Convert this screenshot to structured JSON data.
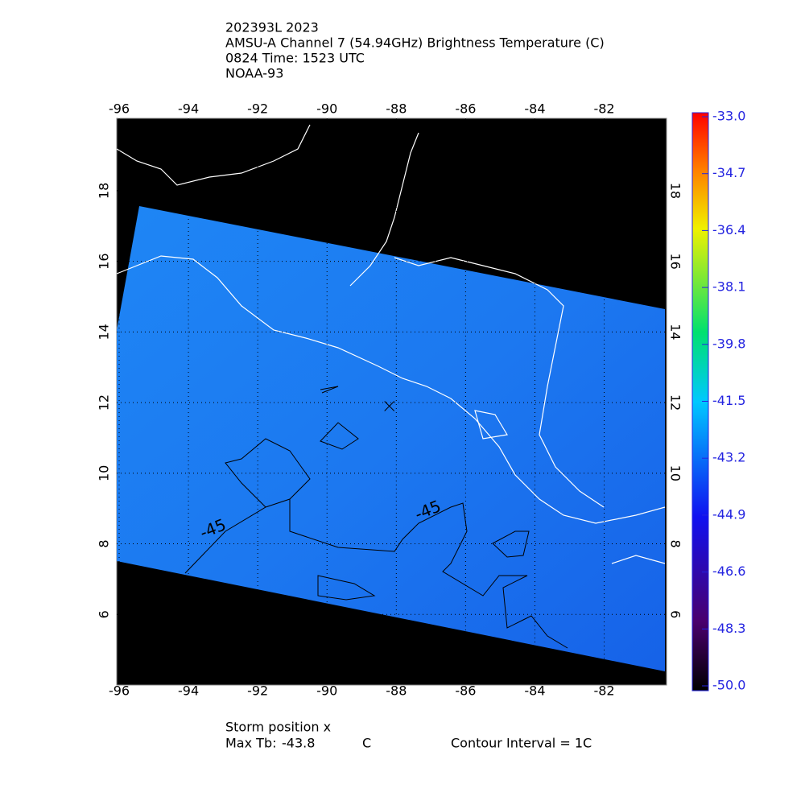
{
  "title_lines": [
    "202393L 2023",
    "AMSU-A Channel 7 (54.94GHz) Brightness Temperature (C)",
    "0824 Time: 1523 UTC",
    "NOAA-93"
  ],
  "map": {
    "xlim": [
      -96.07,
      -80.2
    ],
    "ylim": [
      4.0,
      20.05
    ],
    "xticks": [
      -96,
      -94,
      -92,
      -90,
      -88,
      -86,
      -84,
      -82
    ],
    "yticks": [
      6,
      8,
      10,
      12,
      14,
      16,
      18
    ],
    "contour_labels": [
      "-45",
      "-45"
    ],
    "storm": {
      "lon": -88.2,
      "lat": 11.9
    }
  },
  "colorbar": {
    "lim": [
      -50,
      -33
    ],
    "ticks": [
      {
        "value": -33,
        "label": "-33.0"
      },
      {
        "value": -34.7,
        "label": "-34.7"
      },
      {
        "value": -36.4,
        "label": "-36.4"
      },
      {
        "value": -38.1,
        "label": "-38.1"
      },
      {
        "value": -39.8,
        "label": "-39.8"
      },
      {
        "value": -41.5,
        "label": "-41.5"
      },
      {
        "value": -43.2,
        "label": "-43.2"
      },
      {
        "value": -44.9,
        "label": "-44.9"
      },
      {
        "value": -46.6,
        "label": "-46.6"
      },
      {
        "value": -48.3,
        "label": "-48.3"
      },
      {
        "value": -50,
        "label": "-50.0"
      }
    ]
  },
  "footer": {
    "storm_label": "Storm position x",
    "max_label": "Max Tb:",
    "max_value": -43.8,
    "max_unit": "C",
    "contour": "Contour Interval = 1C"
  }
}
